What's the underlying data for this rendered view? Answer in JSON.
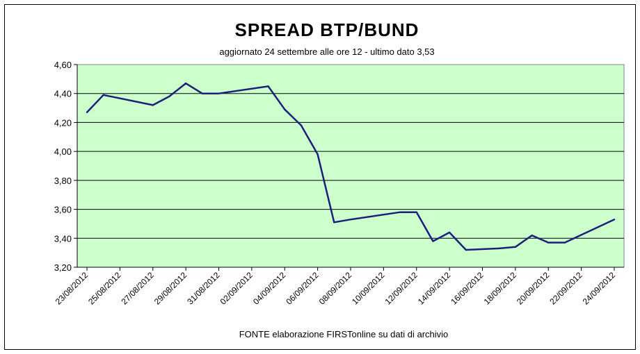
{
  "chart_data": {
    "type": "line",
    "title": "SPREAD  BTP/BUND",
    "subtitle": "aggiornato 24 settembre alle ore 12 - ultimo dato 3,53",
    "source": "FONTE elaborazione FIRSTonline su dati di archivio",
    "ylim": [
      3.2,
      4.6
    ],
    "y_ticks": [
      "3,20",
      "3,40",
      "3,60",
      "3,80",
      "4,00",
      "4,20",
      "4,40",
      "4,60"
    ],
    "x_ticks": [
      "23/08/2012",
      "25/08/2012",
      "27/08/2012",
      "29/08/2012",
      "31/08/2012",
      "02/09/2012",
      "04/09/2012",
      "06/09/2012",
      "08/09/2012",
      "10/09/2012",
      "12/09/2012",
      "14/09/2012",
      "16/09/2012",
      "18/09/2012",
      "20/09/2012",
      "22/09/2012",
      "24/09/2012"
    ],
    "xlim": [
      "23/08/2012",
      "24/09/2012"
    ],
    "grid": true,
    "plot_background": "#ccffcc",
    "line_color": "#1a1f7a",
    "series": [
      {
        "x": [
          "23/08/2012",
          "24/08/2012",
          "27/08/2012",
          "28/08/2012",
          "29/08/2012",
          "30/08/2012",
          "31/08/2012",
          "03/09/2012",
          "04/09/2012",
          "05/09/2012",
          "06/09/2012",
          "07/09/2012",
          "08/09/2012",
          "11/09/2012",
          "12/09/2012",
          "13/09/2012",
          "14/09/2012",
          "15/09/2012",
          "17/09/2012",
          "18/09/2012",
          "19/09/2012",
          "20/09/2012",
          "21/09/2012",
          "24/09/2012"
        ],
        "values": [
          4.27,
          4.39,
          4.32,
          4.38,
          4.47,
          4.4,
          4.4,
          4.45,
          4.29,
          4.18,
          3.98,
          3.51,
          3.53,
          3.58,
          3.58,
          3.38,
          3.44,
          3.32,
          3.33,
          3.34,
          3.42,
          3.37,
          3.37,
          3.53
        ]
      }
    ]
  }
}
